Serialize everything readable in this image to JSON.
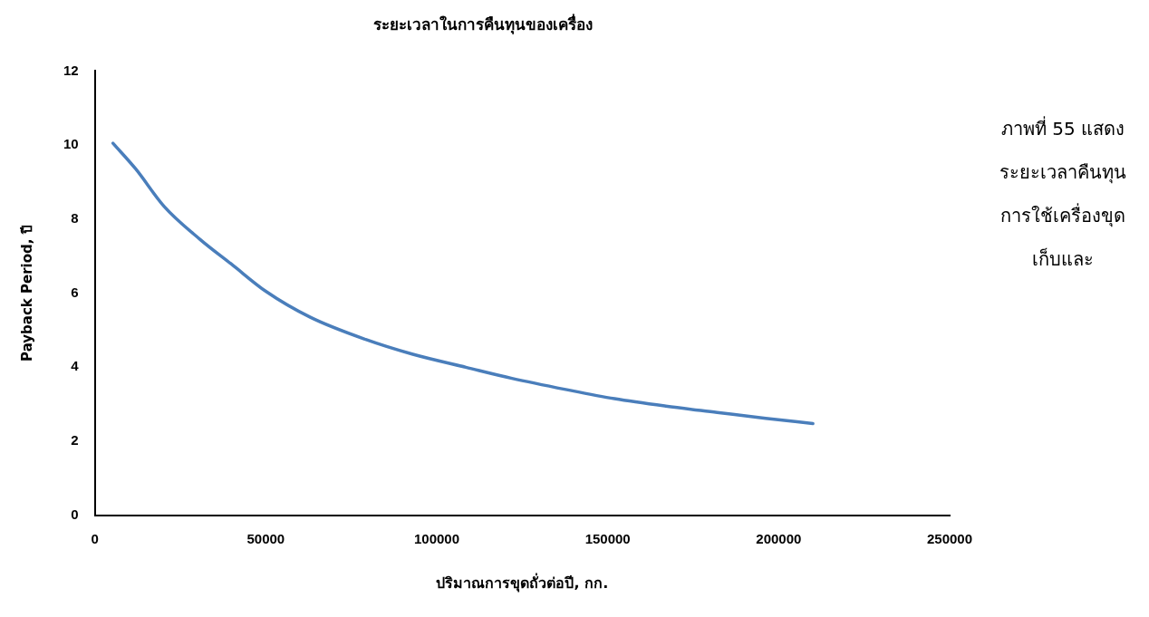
{
  "chart_data": {
    "type": "line",
    "title": "ระยะเวลาในการคืนทุนของเครื่อง",
    "xlabel": "ปริมาณการขุดถั่วต่อปี, กก.",
    "ylabel": "Payback Period, ปี",
    "x": [
      5300,
      12000,
      20200,
      30800,
      40000,
      50000,
      63000,
      79200,
      93000,
      108500,
      122000,
      137700,
      152000,
      167000,
      182000,
      196200,
      210000
    ],
    "series": [
      {
        "color": "#4a7ebb",
        "values": [
          10.05,
          9.35,
          8.35,
          7.45,
          6.78,
          6.05,
          5.35,
          4.75,
          4.35,
          4.0,
          3.7,
          3.4,
          3.15,
          2.95,
          2.78,
          2.62,
          2.48
        ]
      }
    ],
    "xlim": [
      0,
      250000
    ],
    "xticks": [
      0,
      50000,
      100000,
      150000,
      200000,
      250000
    ],
    "ylim": [
      0,
      12
    ],
    "yticks": [
      0,
      2,
      4,
      6,
      8,
      10,
      12
    ],
    "grid": false,
    "legend": false,
    "marker": "none",
    "line_style": "solid",
    "annotations": [
      "ภาพที่ 55 แสดงระยะเวลาคืนทุนการใช้เครื่องขุดเก็บและ"
    ]
  }
}
